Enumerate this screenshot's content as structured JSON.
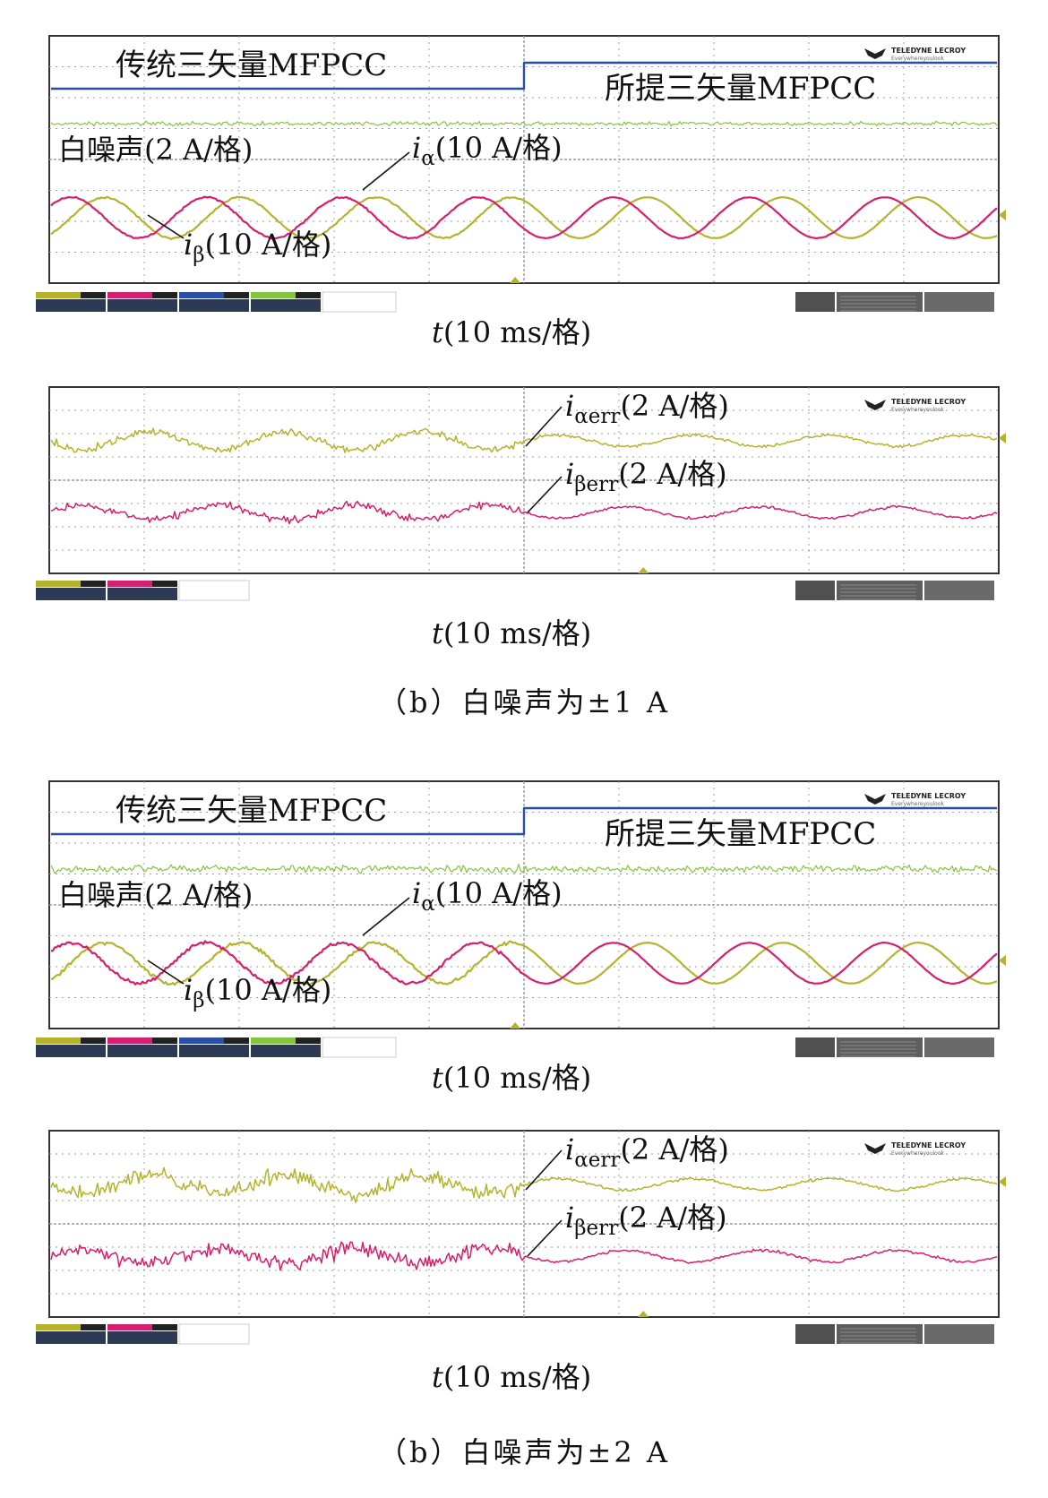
{
  "brand": {
    "name": "TELEDYNE LECROY",
    "tagline": "Everywhereyoulook"
  },
  "colors": {
    "ch1": "#b5b32e",
    "ch2": "#d61f6e",
    "ch3": "#2a4ea8",
    "ch4": "#86c440",
    "grid": "#9a9a9a",
    "frame": "#333333"
  },
  "sections": [
    {
      "caption": "（b）白噪声为±1 A",
      "noise_amplitude_A": 1,
      "top": {
        "left_mode_label": "传统三矢量MFPCC",
        "right_mode_label": "所提三矢量MFPCC",
        "noise_label": "白噪声(2 A/格)",
        "ialpha_label": {
          "sym": "i",
          "sub": "α",
          "rest": "(10 A/格)"
        },
        "ibeta_label": {
          "sym": "i",
          "sub": "β",
          "rest": "(10 A/格)"
        },
        "xlabel": {
          "sym": "t",
          "rest": "(10 ms/格)"
        }
      },
      "bottom": {
        "ialpha_err_label": {
          "sym": "i",
          "sub": "αerr",
          "rest": "(2 A/格)"
        },
        "ibeta_err_label": {
          "sym": "i",
          "sub": "βerr",
          "rest": "(2 A/格)"
        },
        "xlabel": {
          "sym": "t",
          "rest": "(10 ms/格)"
        }
      }
    },
    {
      "caption": "（b）白噪声为±2 A",
      "noise_amplitude_A": 2,
      "top": {
        "left_mode_label": "传统三矢量MFPCC",
        "right_mode_label": "所提三矢量MFPCC",
        "noise_label": "白噪声(2 A/格)",
        "ialpha_label": {
          "sym": "i",
          "sub": "α",
          "rest": "(10 A/格)"
        },
        "ibeta_label": {
          "sym": "i",
          "sub": "β",
          "rest": "(10 A/格)"
        },
        "xlabel": {
          "sym": "t",
          "rest": "(10 ms/格)"
        }
      },
      "bottom": {
        "ialpha_err_label": {
          "sym": "i",
          "sub": "αerr",
          "rest": "(2 A/格)"
        },
        "ibeta_err_label": {
          "sym": "i",
          "sub": "βerr",
          "rest": "(2 A/格)"
        },
        "xlabel": {
          "sym": "t",
          "rest": "(10 ms/格)"
        }
      }
    }
  ],
  "chart_data": [
    {
      "type": "line",
      "title": "",
      "x_unit": "ms",
      "x_per_div": 10,
      "x_divisions": 10,
      "y_divisions": 8,
      "switch_time_ms": 50,
      "series": [
        {
          "name": "i_alpha",
          "scale_per_div": "10 A/格",
          "waveform": "sine",
          "amplitude_div": 1.2,
          "periods": 7
        },
        {
          "name": "i_beta",
          "scale_per_div": "10 A/格",
          "waveform": "sine",
          "amplitude_div": 1.2,
          "periods": 7,
          "phase_shift_deg": 90
        },
        {
          "name": "white_noise",
          "scale_per_div": "2 A/格",
          "amplitude_A": 1
        },
        {
          "name": "mode_signal",
          "levels": [
            "low",
            "high"
          ],
          "switch_time_ms": 50
        }
      ]
    },
    {
      "type": "line",
      "title": "",
      "x_unit": "ms",
      "x_per_div": 10,
      "x_divisions": 10,
      "y_divisions": 8,
      "switch_time_ms": 50,
      "series": [
        {
          "name": "i_alpha_err",
          "scale_per_div": "2 A/格",
          "noise_before_div": 0.8,
          "noise_after_div": 0.3
        },
        {
          "name": "i_beta_err",
          "scale_per_div": "2 A/格",
          "noise_before_div": 0.8,
          "noise_after_div": 0.3
        }
      ]
    },
    {
      "type": "line",
      "title": "",
      "x_unit": "ms",
      "x_per_div": 10,
      "x_divisions": 10,
      "y_divisions": 8,
      "switch_time_ms": 50,
      "series": [
        {
          "name": "i_alpha",
          "scale_per_div": "10 A/格",
          "waveform": "sine",
          "amplitude_div": 1.2,
          "periods": 7
        },
        {
          "name": "i_beta",
          "scale_per_div": "10 A/格",
          "waveform": "sine",
          "amplitude_div": 1.2,
          "periods": 7,
          "phase_shift_deg": 90
        },
        {
          "name": "white_noise",
          "scale_per_div": "2 A/格",
          "amplitude_A": 2
        },
        {
          "name": "mode_signal",
          "levels": [
            "low",
            "high"
          ],
          "switch_time_ms": 50
        }
      ]
    },
    {
      "type": "line",
      "title": "",
      "x_unit": "ms",
      "x_per_div": 10,
      "x_divisions": 10,
      "y_divisions": 8,
      "switch_time_ms": 50,
      "series": [
        {
          "name": "i_alpha_err",
          "scale_per_div": "2 A/格",
          "noise_before_div": 1.6,
          "noise_after_div": 0.3
        },
        {
          "name": "i_beta_err",
          "scale_per_div": "2 A/格",
          "noise_before_div": 1.6,
          "noise_after_div": 0.3
        }
      ]
    }
  ]
}
